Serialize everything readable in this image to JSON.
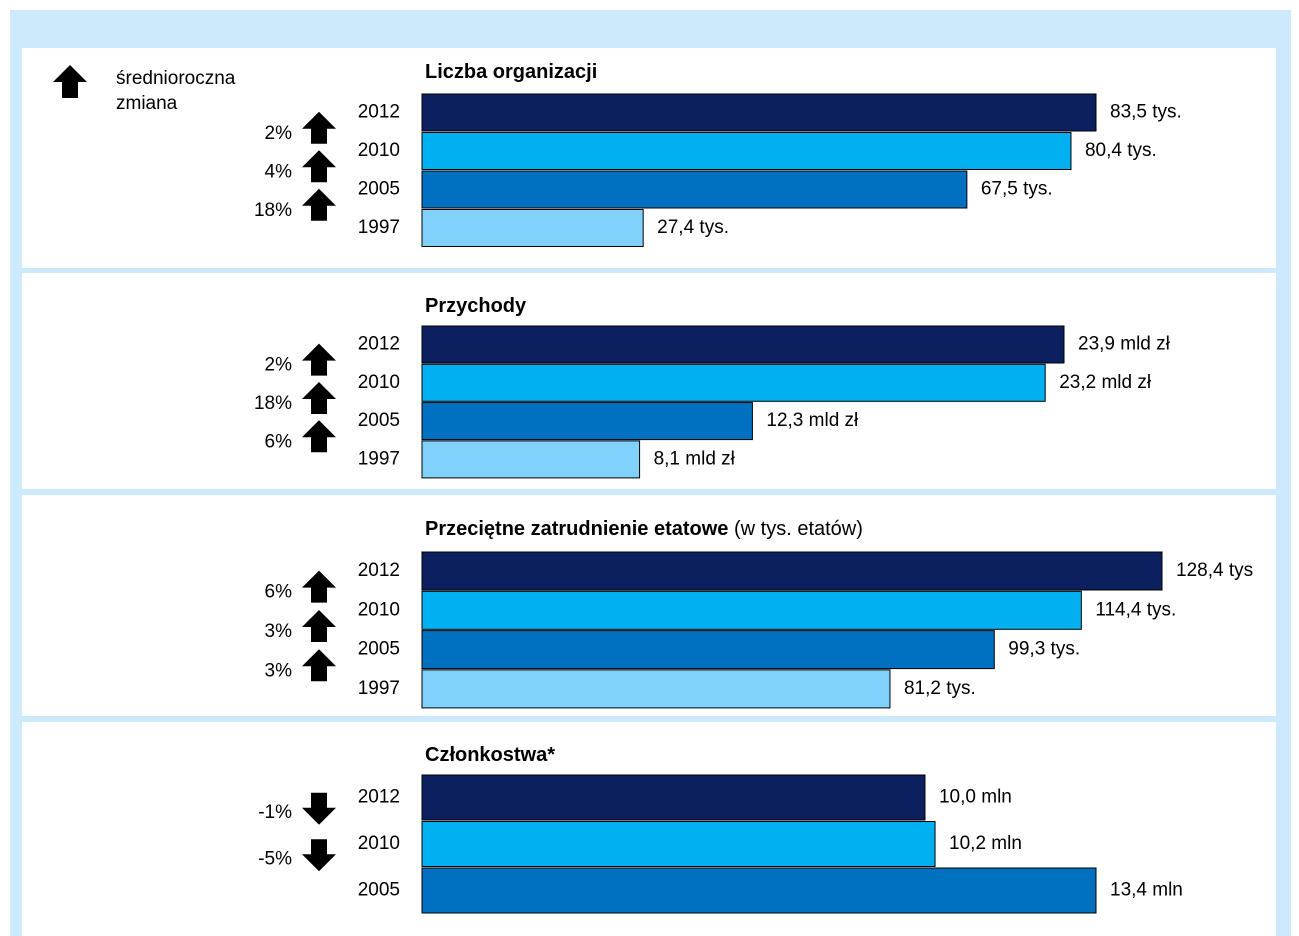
{
  "legend_label": "średnioroczna zmiana",
  "chart_data": [
    {
      "type": "bar",
      "title": "Liczba organizacji",
      "categories": [
        "2012",
        "2010",
        "2005",
        "1997"
      ],
      "values": [
        83.5,
        80.4,
        67.5,
        27.4
      ],
      "value_labels": [
        "83,5 tys.",
        "80,4 tys.",
        "67,5 tys.",
        "27,4 tys."
      ],
      "colors": [
        "#0c2060",
        "#00b0f0",
        "#0070c0",
        "#80d2fc"
      ],
      "changes": [
        2,
        4,
        18
      ],
      "change_labels": [
        "2%",
        "4%",
        "18%"
      ]
    },
    {
      "type": "bar",
      "title": "Przychody",
      "categories": [
        "2012",
        "2010",
        "2005",
        "1997"
      ],
      "values": [
        23.9,
        23.2,
        12.3,
        8.1
      ],
      "value_labels": [
        "23,9 mld zł",
        "23,2 mld zł",
        "12,3 mld zł",
        "8,1 mld zł"
      ],
      "colors": [
        "#0c2060",
        "#00b0f0",
        "#0070c0",
        "#80d2fc"
      ],
      "changes": [
        2,
        18,
        6
      ],
      "change_labels": [
        "2%",
        "18%",
        "6%"
      ]
    },
    {
      "type": "bar",
      "title": "Przeciętne zatrudnienie etatowe",
      "subtitle": "(w tys. etatów)",
      "categories": [
        "2012",
        "2010",
        "2005",
        "1997"
      ],
      "values": [
        128.4,
        114.4,
        99.3,
        81.2
      ],
      "value_labels": [
        "128,4 tys",
        "114,4 tys.",
        "99,3 tys.",
        "81,2 tys."
      ],
      "colors": [
        "#0c2060",
        "#00b0f0",
        "#0070c0",
        "#80d2fc"
      ],
      "changes": [
        6,
        3,
        3
      ],
      "change_labels": [
        "6%",
        "3%",
        "3%"
      ]
    },
    {
      "type": "bar",
      "title": "Członkostwa*",
      "categories": [
        "2012",
        "2010",
        "2005"
      ],
      "values": [
        10.0,
        10.2,
        13.4
      ],
      "value_labels": [
        "10,0 mln",
        "10,2 mln",
        "13,4 mln"
      ],
      "colors": [
        "#0c2060",
        "#00b0f0",
        "#0070c0"
      ],
      "changes": [
        -1,
        -5
      ],
      "change_labels": [
        "-1%",
        "-5%"
      ]
    }
  ]
}
